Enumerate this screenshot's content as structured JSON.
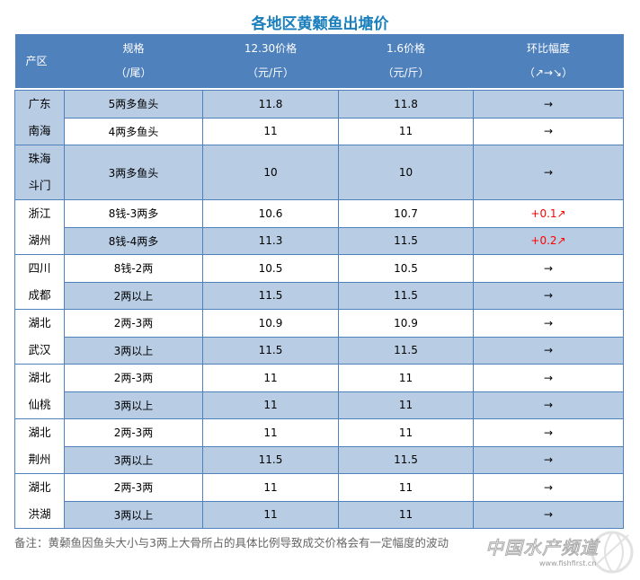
{
  "title": "各地区黄颡鱼出塘价",
  "headers": {
    "region": "产区",
    "spec": [
      "规格",
      "（/尾）"
    ],
    "price1": [
      "12.30价格",
      "（元/斤）"
    ],
    "price2": [
      "1.6价格",
      "（元/斤）"
    ],
    "change": [
      "环比幅度",
      "（↗→↘）"
    ]
  },
  "colors": {
    "header": "#4f81bd",
    "row_shade": "#b8cce4",
    "up": "#ff0000",
    "title": "#1a7fbd"
  },
  "regions": [
    {
      "name": [
        "广东",
        "南海"
      ],
      "rows": [
        {
          "spec": "5两多鱼头",
          "p1": "11.8",
          "p2": "11.8",
          "change": "→",
          "up": false
        },
        {
          "spec": "4两多鱼头",
          "p1": "11",
          "p2": "11",
          "change": "→",
          "up": false
        }
      ]
    },
    {
      "name": [
        "珠海",
        "斗门"
      ],
      "rows": [
        {
          "spec": "3两多鱼头",
          "p1": "10",
          "p2": "10",
          "change": "→",
          "up": false
        }
      ]
    },
    {
      "name": [
        "浙江",
        "湖州"
      ],
      "rows": [
        {
          "spec": "8钱-3两多",
          "p1": "10.6",
          "p2": "10.7",
          "change": "+0.1↗",
          "up": true
        },
        {
          "spec": "8钱-4两多",
          "p1": "11.3",
          "p2": "11.5",
          "change": "+0.2↗",
          "up": true
        }
      ]
    },
    {
      "name": [
        "四川",
        "成都"
      ],
      "rows": [
        {
          "spec": "8钱-2两",
          "p1": "10.5",
          "p2": "10.5",
          "change": "→",
          "up": false
        },
        {
          "spec": "2两以上",
          "p1": "11.5",
          "p2": "11.5",
          "change": "→",
          "up": false
        }
      ]
    },
    {
      "name": [
        "湖北",
        "武汉"
      ],
      "rows": [
        {
          "spec": "2两-3两",
          "p1": "10.9",
          "p2": "10.9",
          "change": "→",
          "up": false
        },
        {
          "spec": "3两以上",
          "p1": "11.5",
          "p2": "11.5",
          "change": "→",
          "up": false
        }
      ]
    },
    {
      "name": [
        "湖北",
        "仙桃"
      ],
      "rows": [
        {
          "spec": "2两-3两",
          "p1": "11",
          "p2": "11",
          "change": "→",
          "up": false
        },
        {
          "spec": "3两以上",
          "p1": "11",
          "p2": "11",
          "change": "→",
          "up": false
        }
      ]
    },
    {
      "name": [
        "湖北",
        "荆州"
      ],
      "rows": [
        {
          "spec": "2两-3两",
          "p1": "11",
          "p2": "11",
          "change": "→",
          "up": false
        },
        {
          "spec": "3两以上",
          "p1": "11.5",
          "p2": "11.5",
          "change": "→",
          "up": false
        }
      ]
    },
    {
      "name": [
        "湖北",
        "洪湖"
      ],
      "rows": [
        {
          "spec": "2两-3两",
          "p1": "11",
          "p2": "11",
          "change": "→",
          "up": false
        },
        {
          "spec": "3两以上",
          "p1": "11",
          "p2": "11",
          "change": "→",
          "up": false
        }
      ]
    }
  ],
  "note": "备注：黄颡鱼因鱼头大小与3两上大骨所占的具体比例导致成交价格会有一定幅度的波动",
  "watermark": {
    "name": "中国水产频道",
    "url": "www.fishfirst.cn"
  }
}
